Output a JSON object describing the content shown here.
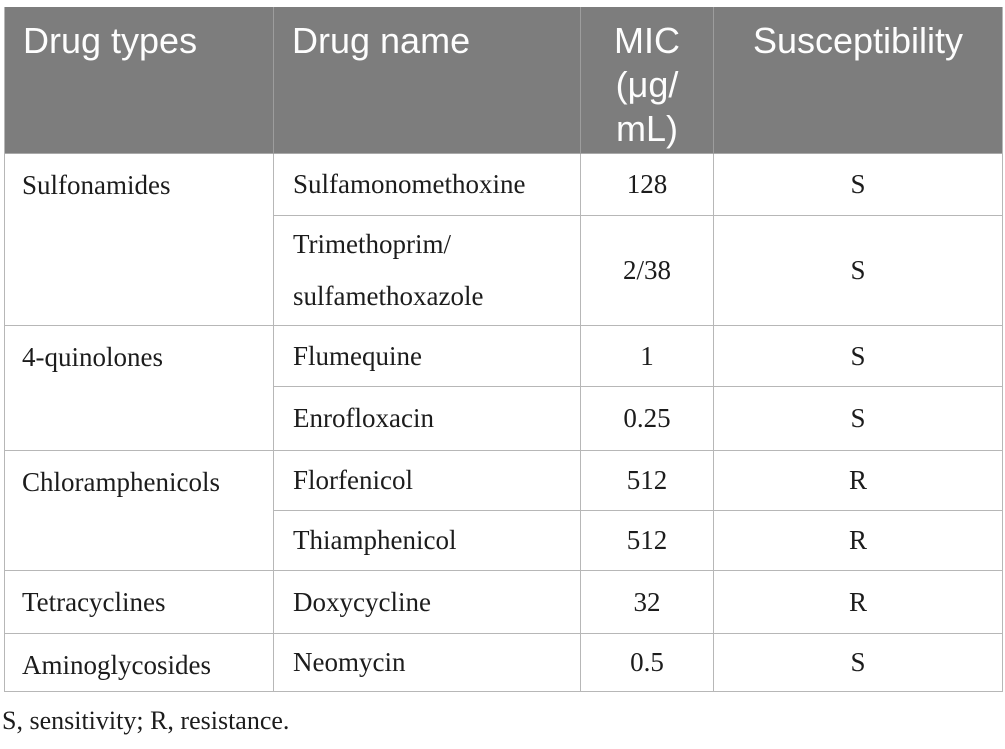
{
  "table": {
    "columns": {
      "drug_types": "Drug types",
      "drug_name": "Drug name",
      "mic": "MIC\n(μg/\nmL)",
      "susceptibility": "Susceptibility"
    },
    "groups": [
      {
        "type": "Sulfonamides",
        "drugs": [
          {
            "name": "Sulfamonomethoxine",
            "mic": "128",
            "susceptibility": "S"
          },
          {
            "name": "Trimethoprim/\nsulfamethoxazole",
            "mic": "2/38",
            "susceptibility": "S"
          }
        ]
      },
      {
        "type": "4-quinolones",
        "drugs": [
          {
            "name": "Flumequine",
            "mic": "1",
            "susceptibility": "S"
          },
          {
            "name": "Enrofloxacin",
            "mic": "0.25",
            "susceptibility": "S"
          }
        ]
      },
      {
        "type": "Chloramphenicols",
        "drugs": [
          {
            "name": "Florfenicol",
            "mic": "512",
            "susceptibility": "R"
          },
          {
            "name": "Thiamphenicol",
            "mic": "512",
            "susceptibility": "R"
          }
        ]
      },
      {
        "type": "Tetracyclines",
        "drugs": [
          {
            "name": "Doxycycline",
            "mic": "32",
            "susceptibility": "R"
          }
        ]
      },
      {
        "type": "Aminoglycosides",
        "drugs": [
          {
            "name": "Neomycin",
            "mic": "0.5",
            "susceptibility": "S"
          }
        ]
      }
    ],
    "footnote": "S, sensitivity; R, resistance."
  },
  "colors": {
    "header_background": "#7d7d7d",
    "header_text": "#fdfdfd",
    "grid_border": "#b7b7b7",
    "body_text": "#1c1c1c"
  }
}
